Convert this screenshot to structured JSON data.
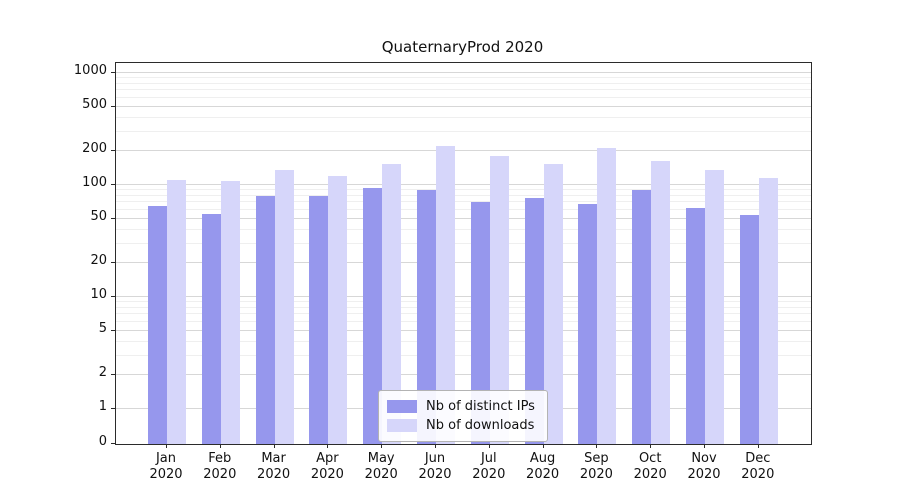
{
  "title": "QuaternaryProd 2020",
  "chart_data": {
    "type": "bar",
    "title": "QuaternaryProd 2020",
    "categories": [
      "Jan",
      "Feb",
      "Mar",
      "Apr",
      "May",
      "Jun",
      "Jul",
      "Aug",
      "Sep",
      "Oct",
      "Nov",
      "Dec"
    ],
    "year": "2020",
    "series": [
      {
        "name": "Nb of distinct IPs",
        "color": "#9697ed",
        "values": [
          65,
          55,
          80,
          80,
          95,
          90,
          70,
          77,
          68,
          90,
          62,
          54
        ]
      },
      {
        "name": "Nb of downloads",
        "color": "#d6d6fa",
        "values": [
          110,
          108,
          135,
          120,
          155,
          225,
          180,
          155,
          215,
          165,
          135,
          115
        ]
      }
    ],
    "yscale": "symlog",
    "yticks": [
      0,
      1,
      2,
      5,
      10,
      20,
      50,
      100,
      200,
      500,
      1000
    ],
    "ylim": [
      0,
      1230
    ],
    "xlabel": "",
    "ylabel": "",
    "grid": true,
    "legend_position": "lower center"
  }
}
